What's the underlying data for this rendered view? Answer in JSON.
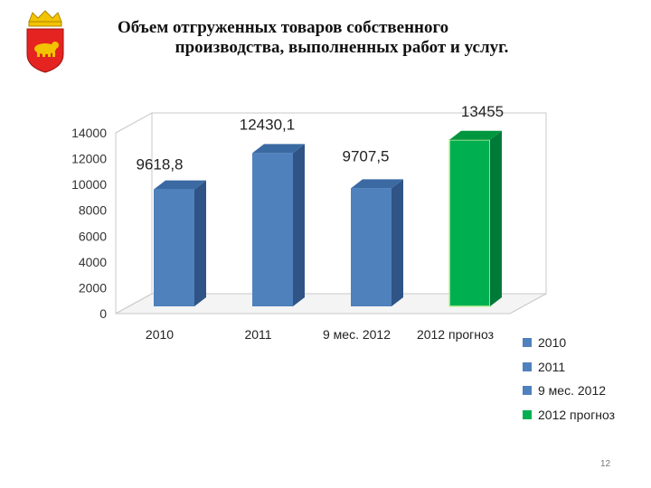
{
  "title": {
    "line1": "Объем отгруженных товаров собственного",
    "line2": "производства, выполненных работ и услуг."
  },
  "emblem": {
    "icon": "coat-of-arms-emblem",
    "colors": {
      "shield": "#e52421",
      "bear": "#f2c300"
    }
  },
  "chart_data": {
    "type": "bar",
    "title": "",
    "xlabel": "",
    "ylabel": "",
    "categories": [
      "2010",
      "2011",
      "9 мес. 2012",
      "2012 прогноз"
    ],
    "values": [
      9618.8,
      12430.1,
      9707.5,
      13455
    ],
    "data_labels": [
      "9618,8",
      "12430,1",
      "9707,5",
      "13455"
    ],
    "colors": [
      "#4f81bd",
      "#4f81bd",
      "#4f81bd",
      "#00b050"
    ],
    "ylim": [
      0,
      14000
    ],
    "yticks": [
      "0",
      "2000",
      "4000",
      "6000",
      "8000",
      "10000",
      "12000",
      "14000"
    ],
    "grid": false,
    "legend_position": "right",
    "style": "3d"
  },
  "legend": {
    "items": [
      {
        "label": "2010",
        "color": "#4f81bd"
      },
      {
        "label": "2011",
        "color": "#4f81bd"
      },
      {
        "label": "9 мес. 2012",
        "color": "#4f81bd"
      },
      {
        "label": "2012 прогноз",
        "color": "#00b050"
      }
    ]
  },
  "page_number": "12"
}
